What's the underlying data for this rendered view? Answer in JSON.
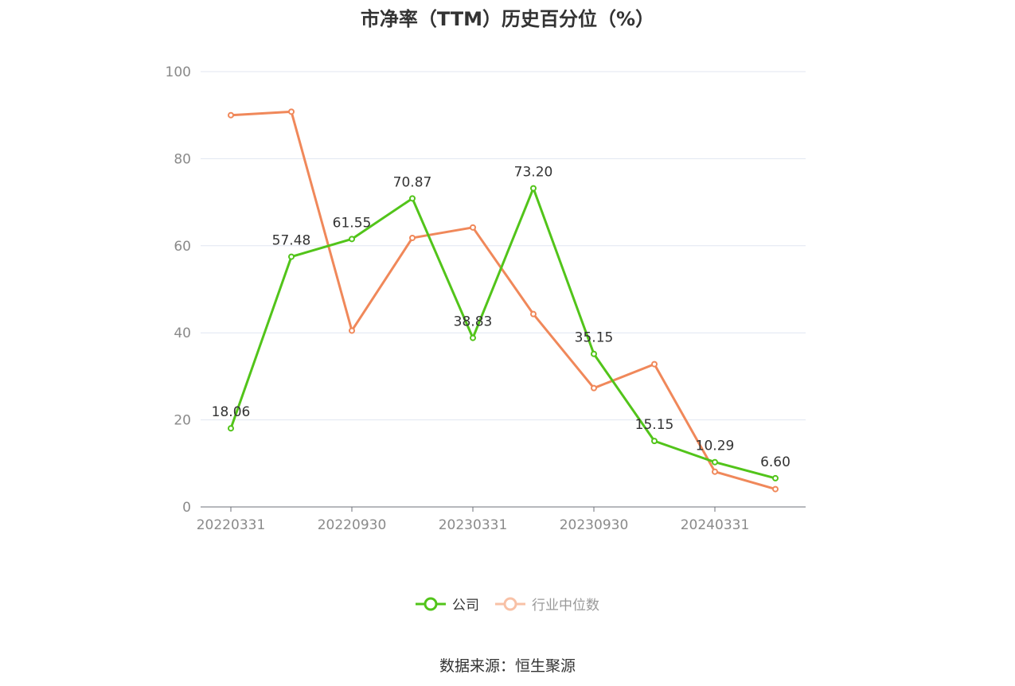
{
  "chart_data": {
    "type": "line",
    "title": "市净率（TTM）历史百分位（%）",
    "x": [
      "20220331",
      "20220630",
      "20220930",
      "20221230",
      "20230331",
      "20230630",
      "20230930",
      "20231229",
      "20240331",
      "20240630"
    ],
    "xtick_labels": [
      "20220331",
      "20220930",
      "20230331",
      "20230930",
      "20240331"
    ],
    "ylim": [
      0,
      100
    ],
    "yticks": [
      0,
      20,
      40,
      60,
      80,
      100
    ],
    "grid": true,
    "legend_position": "bottom",
    "series": [
      {
        "name": "公司",
        "color": "#52c41a",
        "values": [
          18.06,
          57.48,
          61.55,
          70.87,
          38.83,
          73.2,
          35.15,
          15.15,
          10.29,
          6.6
        ],
        "labels": [
          "18.06",
          "57.48",
          "61.55",
          "70.87",
          "38.83",
          "73.20",
          "35.15",
          "15.15",
          "10.29",
          "6.60"
        ]
      },
      {
        "name": "行业中位数",
        "color": "#f0885a",
        "values": [
          90.0,
          90.8,
          40.5,
          61.8,
          64.2,
          44.3,
          27.3,
          32.8,
          8.1,
          4.1
        ]
      }
    ]
  },
  "source": "数据来源：恒生聚源"
}
